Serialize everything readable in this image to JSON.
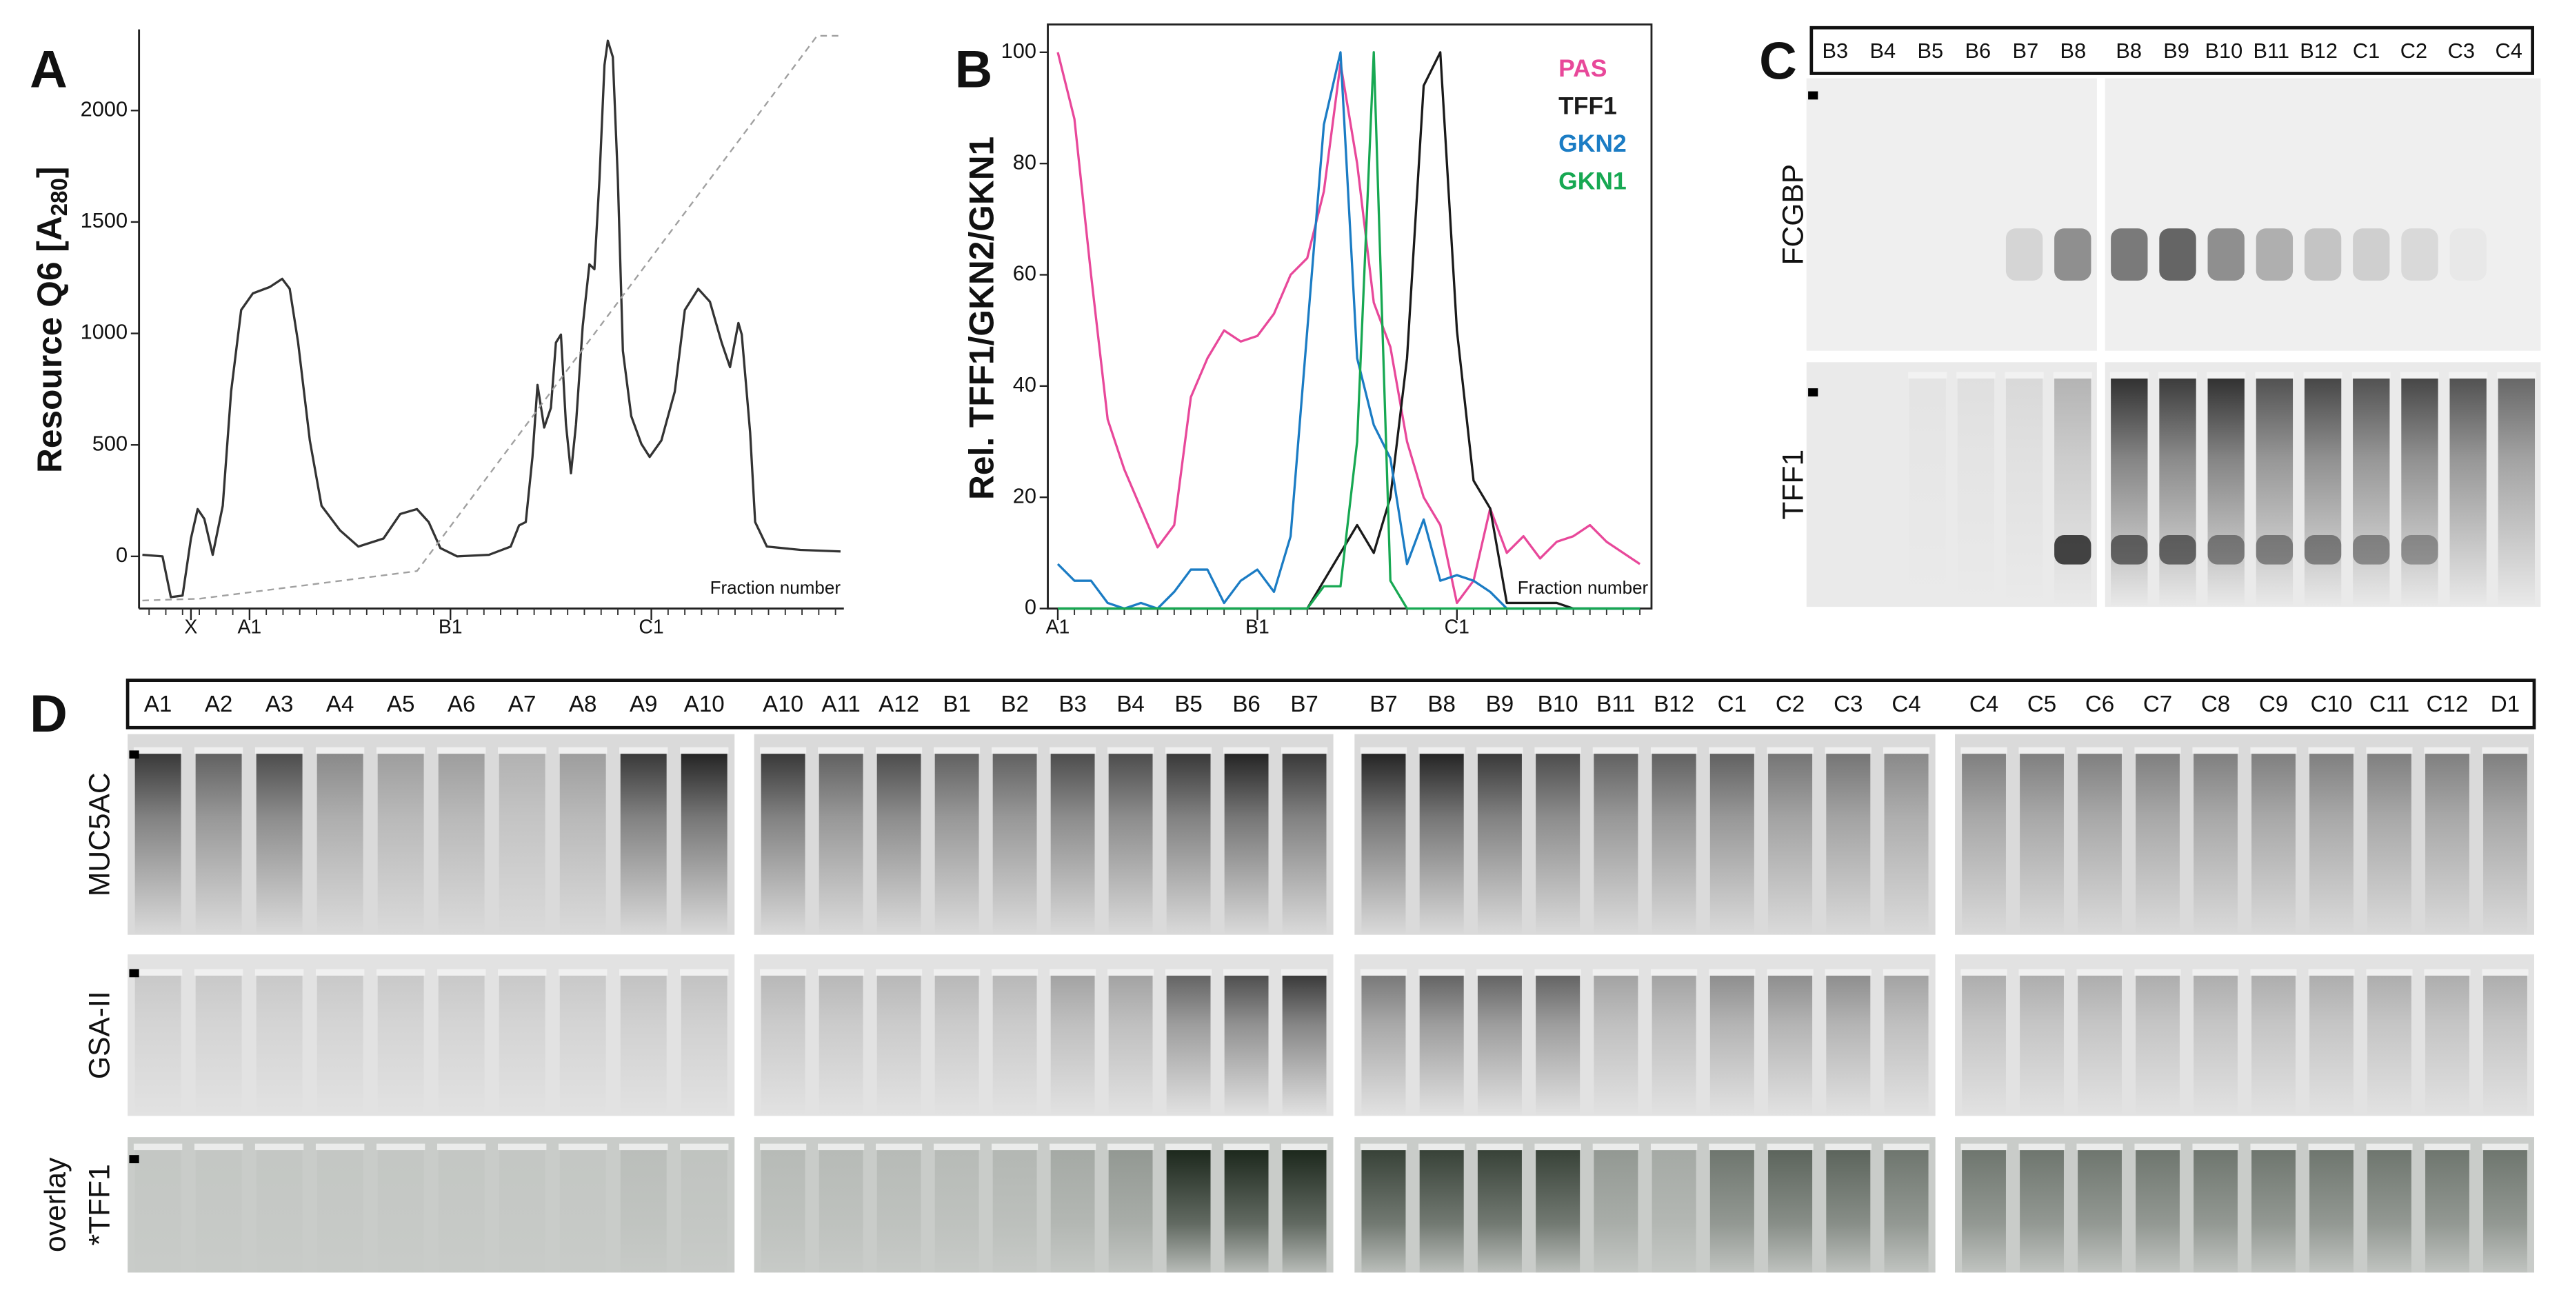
{
  "chart_data": [
    {
      "type": "line",
      "panel": "A",
      "y_label": {
        "text": "Resource Q6 [A",
        "sub": "280",
        "end": "]"
      },
      "annotation": "Fraction number",
      "xlim": [
        -5.6,
        36.5
      ],
      "ylim": [
        -234,
        2364
      ],
      "yticks": [
        0,
        500,
        1000,
        1500,
        2000
      ],
      "xticks": [
        {
          "value": -2.5,
          "label": "X"
        },
        {
          "value": 1,
          "label": "A1"
        },
        {
          "value": 13,
          "label": "B1"
        },
        {
          "value": 25,
          "label": "C1"
        }
      ],
      "xminor": [
        -5,
        -4,
        -3,
        -2,
        -1,
        0,
        1,
        2,
        3,
        4,
        5,
        6,
        7,
        8,
        9,
        10,
        11,
        12,
        13,
        14,
        15,
        16,
        17,
        18,
        19,
        20,
        21,
        22,
        23,
        24,
        25,
        26,
        27,
        28,
        29,
        30,
        31,
        32,
        33,
        34,
        35,
        36
      ],
      "series": [
        {
          "color": "#333333",
          "x": [
            -5.4,
            -4.2,
            -3.7,
            -3.0,
            -2.5,
            -2.1,
            -1.7,
            -1.2,
            -0.6,
            -0.1,
            0.5,
            1.2,
            2.2,
            2.95,
            3.4,
            3.9,
            4.6,
            5.3,
            6.4,
            7.5,
            9.0,
            10.0,
            11.0,
            11.7,
            12.4,
            13.4,
            15.3,
            16.6,
            17.1,
            17.5,
            17.9,
            18.2,
            18.6,
            19.0,
            19.3,
            19.6,
            19.9,
            20.2,
            20.5,
            20.9,
            21.3,
            21.6,
            21.9,
            22.2,
            22.4,
            22.7,
            23.0,
            23.3,
            23.8,
            24.4,
            24.9,
            25.6,
            26.4,
            27.0,
            27.8,
            28.5,
            29.2,
            29.7,
            30.2,
            30.4,
            30.9,
            31.2,
            31.9,
            33.9,
            36.3
          ],
          "values": [
            7,
            0,
            -183,
            -176,
            80,
            212,
            168,
            7,
            227,
            740,
            1105,
            1180,
            1208,
            1245,
            1200,
            960,
            520,
            227,
            117,
            44,
            80,
            190,
            212,
            154,
            37,
            0,
            7,
            44,
            139,
            154,
            446,
            769,
            578,
            666,
            959,
            995,
            593,
            373,
            593,
            1032,
            1310,
            1288,
            1691,
            2203,
            2313,
            2240,
            1691,
            922,
            629,
            505,
            446,
            520,
            739,
            1105,
            1200,
            1142,
            959,
            849,
            1047,
            995,
            556,
            154,
            44,
            29,
            22
          ]
        },
        {
          "color": "#a0a0a0",
          "line_style": "dashed",
          "x": [
            -5.4,
            -2.0,
            11.0,
            34.9,
            36.3
          ],
          "values": [
            -198,
            -190,
            -66,
            2335,
            2335
          ]
        }
      ]
    },
    {
      "type": "line",
      "panel": "B",
      "y_label": "Rel. TFF1/GKN2/GKN1",
      "annotation": "Fraction number",
      "xlim": [
        0.4,
        36.7
      ],
      "ylim": [
        0,
        105
      ],
      "yticks": [
        0,
        20,
        40,
        60,
        80,
        100
      ],
      "xticks": [
        {
          "value": 1,
          "label": "A1"
        },
        {
          "value": 13,
          "label": "B1"
        },
        {
          "value": 25,
          "label": "C1"
        }
      ],
      "xminor": [
        1,
        2,
        3,
        4,
        5,
        6,
        7,
        8,
        9,
        10,
        11,
        12,
        13,
        14,
        15,
        16,
        17,
        18,
        19,
        20,
        21,
        22,
        23,
        24,
        25,
        26,
        27,
        28,
        29,
        30,
        31,
        32,
        33,
        34,
        35,
        36
      ],
      "x": [
        1,
        2,
        3,
        4,
        5,
        6,
        7,
        8,
        9,
        10,
        11,
        12,
        13,
        14,
        15,
        16,
        17,
        18,
        19,
        20,
        21,
        22,
        23,
        24,
        25,
        26,
        27,
        28,
        29,
        30,
        31,
        32,
        33,
        34,
        35,
        36
      ],
      "legend": "upper right",
      "series": [
        {
          "name": "PAS",
          "color": "#e8489a",
          "values": [
            100,
            88,
            60,
            34,
            25,
            18,
            11,
            15,
            38,
            45,
            50,
            48,
            49,
            53,
            60,
            63,
            75,
            98,
            80,
            55,
            47,
            30,
            20,
            15,
            1,
            5,
            18,
            10,
            13,
            9,
            12,
            13,
            15,
            12,
            10,
            8
          ]
        },
        {
          "name": "TFF1",
          "color": "#1a1a1a",
          "values": [
            0,
            0,
            0,
            0,
            0,
            0,
            0,
            0,
            0,
            0,
            0,
            0,
            0,
            0,
            0,
            0,
            5,
            10,
            15,
            10,
            20,
            45,
            94,
            100,
            50,
            23,
            18,
            1,
            1,
            1,
            1,
            0,
            0,
            0,
            0,
            0
          ]
        },
        {
          "name": "GKN2",
          "color": "#1b7cc4",
          "values": [
            8,
            5,
            5,
            1,
            0,
            1,
            0,
            3,
            7,
            7,
            1,
            5,
            7,
            3,
            13,
            50,
            87,
            100,
            45,
            33,
            27,
            8,
            16,
            5,
            6,
            5,
            3,
            0,
            0,
            0,
            0,
            0,
            0,
            0,
            0,
            0
          ]
        },
        {
          "name": "GKN1",
          "color": "#17a852",
          "values": [
            0,
            0,
            0,
            0,
            0,
            0,
            0,
            0,
            0,
            0,
            0,
            0,
            0,
            0,
            0,
            0,
            4,
            4,
            30,
            100,
            5,
            0,
            0,
            0,
            0,
            0,
            0,
            0,
            0,
            0,
            0,
            0,
            0,
            0,
            0,
            0
          ]
        }
      ]
    }
  ],
  "blots": {
    "C": {
      "panel": "C",
      "groups": [
        [
          "B3",
          "B4",
          "B5",
          "B6",
          "B7",
          "B8"
        ],
        [
          "B8",
          "B9",
          "B10",
          "B11",
          "B12",
          "C1",
          "C2",
          "C3",
          "C4"
        ]
      ],
      "rows": [
        [
          "FCGBP"
        ],
        [
          "TFF1"
        ]
      ]
    },
    "D": {
      "panel": "D",
      "groups": [
        [
          "A1",
          "A2",
          "A3",
          "A4",
          "A5",
          "A6",
          "A7",
          "A8",
          "A9",
          "A10"
        ],
        [
          "A10",
          "A11",
          "A12",
          "B1",
          "B2",
          "B3",
          "B4",
          "B5",
          "B6",
          "B7"
        ],
        [
          "B7",
          "B8",
          "B9",
          "B10",
          "B11",
          "B12",
          "C1",
          "C2",
          "C3",
          "C4"
        ],
        [
          "C4",
          "C5",
          "C6",
          "C7",
          "C8",
          "C9",
          "C10",
          "C11",
          "C12",
          "D1"
        ]
      ],
      "rows": [
        [
          "MUC5AC"
        ],
        [
          "GSA-II"
        ],
        [
          "overlay",
          "*TFF1"
        ]
      ]
    }
  }
}
